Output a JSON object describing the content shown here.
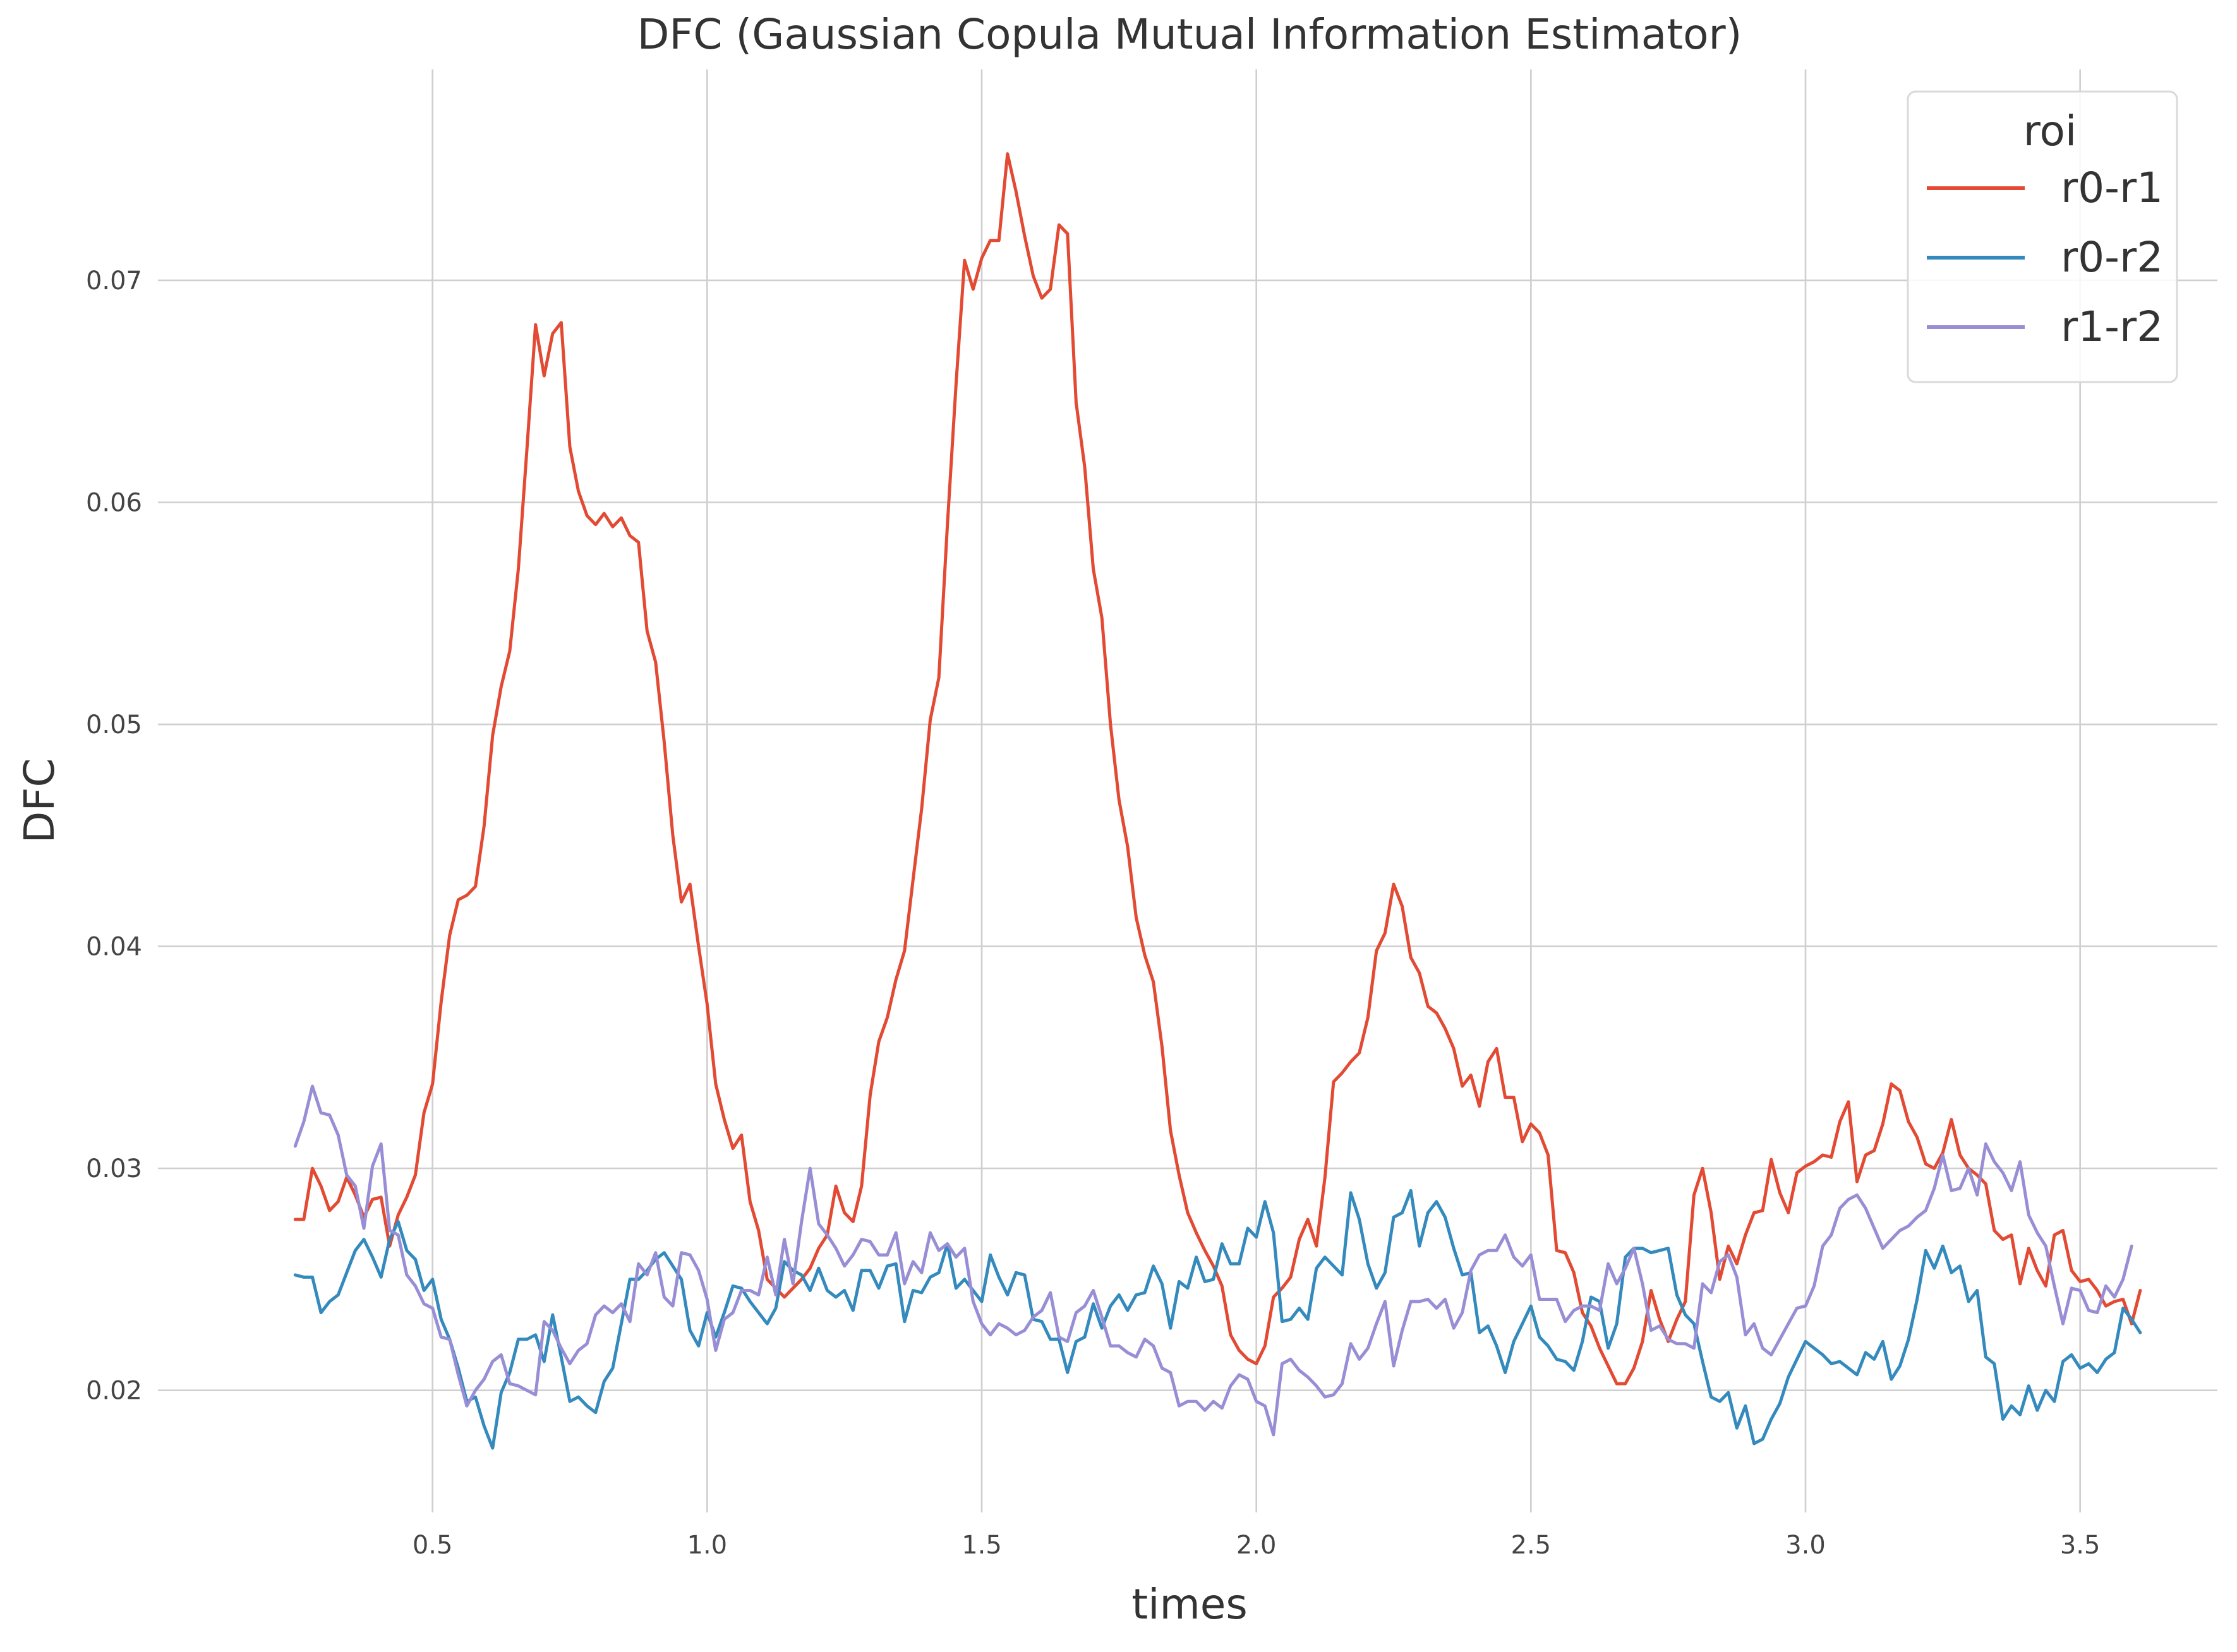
{
  "chart_data": {
    "type": "line",
    "title": "DFC (Gaussian Copula Mutual Information Estimator)",
    "xlabel": "times",
    "ylabel": "DFC",
    "xlim": [
      0.0,
      3.75
    ],
    "ylim": [
      0.0145,
      0.0795
    ],
    "xticks": [
      "0.5",
      "1.0",
      "1.5",
      "2.0",
      "2.5",
      "3.0",
      "3.5"
    ],
    "yticks": [
      "0.02",
      "0.03",
      "0.04",
      "0.05",
      "0.06",
      "0.07"
    ],
    "grid": true,
    "legend": {
      "title": "roi",
      "placement": "top-right"
    },
    "x": {
      "start": 0.25,
      "end": 3.625,
      "step": 0.015625,
      "unit": "times"
    },
    "series": [
      {
        "name": "r0-r1",
        "color": "#E24A33",
        "values": [
          0.0277,
          0.0277,
          0.03,
          0.0292,
          0.0281,
          0.0285,
          0.0296,
          0.0288,
          0.0278,
          0.0286,
          0.0287,
          0.0265,
          0.0279,
          0.0287,
          0.0297,
          0.0325,
          0.0338,
          0.0375,
          0.0405,
          0.0421,
          0.0423,
          0.0427,
          0.0454,
          0.0495,
          0.0517,
          0.0533,
          0.057,
          0.0624,
          0.068,
          0.0657,
          0.0676,
          0.0681,
          0.0625,
          0.0605,
          0.0594,
          0.059,
          0.0595,
          0.0589,
          0.0593,
          0.0585,
          0.0582,
          0.0542,
          0.0528,
          0.0492,
          0.045,
          0.042,
          0.0428,
          0.04,
          0.0374,
          0.0338,
          0.0322,
          0.0309,
          0.0315,
          0.0285,
          0.0272,
          0.025,
          0.0246,
          0.0242,
          0.0246,
          0.025,
          0.0255,
          0.0264,
          0.027,
          0.0292,
          0.028,
          0.0276,
          0.0292,
          0.0333,
          0.0357,
          0.0368,
          0.0385,
          0.0398,
          0.043,
          0.0462,
          0.0502,
          0.0521,
          0.059,
          0.0653,
          0.0709,
          0.0696,
          0.071,
          0.0718,
          0.0718,
          0.0757,
          0.074,
          0.072,
          0.0702,
          0.0692,
          0.0696,
          0.0725,
          0.0721,
          0.0645,
          0.0616,
          0.057,
          0.0548,
          0.05,
          0.0466,
          0.0445,
          0.0413,
          0.0396,
          0.0384,
          0.0355,
          0.0317,
          0.0297,
          0.028,
          0.0271,
          0.0263,
          0.0256,
          0.0247,
          0.0225,
          0.0218,
          0.0214,
          0.0212,
          0.022,
          0.0242,
          0.0246,
          0.0251,
          0.0268,
          0.0277,
          0.0265,
          0.0296,
          0.0339,
          0.0343,
          0.0348,
          0.0352,
          0.0368,
          0.0398,
          0.0406,
          0.0428,
          0.0418,
          0.0395,
          0.0388,
          0.0373,
          0.037,
          0.0363,
          0.0354,
          0.0337,
          0.0342,
          0.0328,
          0.0348,
          0.0354,
          0.0332,
          0.0332,
          0.0312,
          0.032,
          0.0316,
          0.0306,
          0.0263,
          0.0262,
          0.0253,
          0.0235,
          0.0229,
          0.0219,
          0.0211,
          0.0203,
          0.0203,
          0.021,
          0.0222,
          0.0245,
          0.0232,
          0.0222,
          0.0232,
          0.024,
          0.0288,
          0.03,
          0.028,
          0.025,
          0.0265,
          0.0257,
          0.027,
          0.028,
          0.0281,
          0.0304,
          0.0289,
          0.028,
          0.0298,
          0.0301,
          0.0303,
          0.0306,
          0.0305,
          0.0321,
          0.033,
          0.0294,
          0.0306,
          0.0308,
          0.032,
          0.0338,
          0.0335,
          0.0321,
          0.0314,
          0.0302,
          0.03,
          0.0307,
          0.0322,
          0.0306,
          0.03,
          0.0297,
          0.0293,
          0.0272,
          0.0268,
          0.027,
          0.0248,
          0.0264,
          0.0254,
          0.0247,
          0.027,
          0.0272,
          0.0254,
          0.0249,
          0.025,
          0.0245,
          0.0238,
          0.024,
          0.0241,
          0.023,
          0.0245
        ]
      },
      {
        "name": "r0-r2",
        "color": "#348ABD",
        "values": [
          0.0252,
          0.0251,
          0.0251,
          0.0235,
          0.024,
          0.0243,
          0.0253,
          0.0263,
          0.0268,
          0.026,
          0.0251,
          0.0268,
          0.0276,
          0.0263,
          0.0259,
          0.0245,
          0.025,
          0.0232,
          0.0223,
          0.021,
          0.0195,
          0.0197,
          0.0184,
          0.0174,
          0.0199,
          0.0208,
          0.0223,
          0.0223,
          0.0225,
          0.0213,
          0.0234,
          0.0215,
          0.0195,
          0.0197,
          0.0193,
          0.019,
          0.0204,
          0.021,
          0.023,
          0.025,
          0.025,
          0.0254,
          0.0259,
          0.0262,
          0.0256,
          0.025,
          0.0227,
          0.022,
          0.0235,
          0.0224,
          0.0235,
          0.0247,
          0.0246,
          0.024,
          0.0235,
          0.023,
          0.0237,
          0.0258,
          0.0254,
          0.0252,
          0.0245,
          0.0255,
          0.0245,
          0.0242,
          0.0245,
          0.0236,
          0.0254,
          0.0254,
          0.0246,
          0.0256,
          0.0257,
          0.0231,
          0.0245,
          0.0244,
          0.0251,
          0.0253,
          0.0266,
          0.0246,
          0.025,
          0.0245,
          0.024,
          0.0261,
          0.0251,
          0.0243,
          0.0253,
          0.0252,
          0.0232,
          0.0231,
          0.0223,
          0.0223,
          0.0208,
          0.0222,
          0.0224,
          0.0239,
          0.0228,
          0.0238,
          0.0243,
          0.0236,
          0.0243,
          0.0244,
          0.0256,
          0.0248,
          0.0228,
          0.0249,
          0.0246,
          0.026,
          0.0249,
          0.025,
          0.0266,
          0.0257,
          0.0257,
          0.0273,
          0.0269,
          0.0285,
          0.0271,
          0.0231,
          0.0232,
          0.0237,
          0.0232,
          0.0255,
          0.026,
          0.0256,
          0.0252,
          0.0289,
          0.0277,
          0.0257,
          0.0246,
          0.0253,
          0.0278,
          0.028,
          0.029,
          0.0265,
          0.028,
          0.0285,
          0.0278,
          0.0264,
          0.0252,
          0.0253,
          0.0226,
          0.0229,
          0.022,
          0.0208,
          0.0222,
          0.023,
          0.0238,
          0.0224,
          0.022,
          0.0214,
          0.0213,
          0.0209,
          0.0222,
          0.0242,
          0.024,
          0.0219,
          0.023,
          0.026,
          0.0264,
          0.0264,
          0.0262,
          0.0263,
          0.0264,
          0.0243,
          0.0234,
          0.023,
          0.0213,
          0.0197,
          0.0195,
          0.0199,
          0.0183,
          0.0193,
          0.0176,
          0.0178,
          0.0187,
          0.0194,
          0.0206,
          0.0214,
          0.0222,
          0.0219,
          0.0216,
          0.0212,
          0.0213,
          0.021,
          0.0207,
          0.0217,
          0.0214,
          0.0222,
          0.0205,
          0.0211,
          0.0223,
          0.0241,
          0.0263,
          0.0255,
          0.0265,
          0.0253,
          0.0256,
          0.024,
          0.0245,
          0.0215,
          0.0212,
          0.0187,
          0.0193,
          0.0189,
          0.0202,
          0.0191,
          0.02,
          0.0195,
          0.0213,
          0.0216,
          0.021,
          0.0212,
          0.0208,
          0.0214,
          0.0217,
          0.0237,
          0.0232,
          0.0226
        ]
      },
      {
        "name": "r1-r2",
        "color": "#988ED5",
        "values": [
          0.031,
          0.0321,
          0.0337,
          0.0325,
          0.0324,
          0.0315,
          0.0297,
          0.0292,
          0.0273,
          0.0301,
          0.0311,
          0.0272,
          0.027,
          0.0252,
          0.0247,
          0.0239,
          0.0237,
          0.0224,
          0.0223,
          0.0207,
          0.0193,
          0.02,
          0.0205,
          0.0213,
          0.0216,
          0.0203,
          0.0202,
          0.02,
          0.0198,
          0.0231,
          0.0227,
          0.0219,
          0.0212,
          0.0218,
          0.0221,
          0.0234,
          0.0238,
          0.0235,
          0.0239,
          0.0231,
          0.0257,
          0.0252,
          0.0262,
          0.0242,
          0.0238,
          0.0262,
          0.0261,
          0.0254,
          0.0241,
          0.0218,
          0.0232,
          0.0235,
          0.0245,
          0.0245,
          0.0243,
          0.026,
          0.0243,
          0.0268,
          0.0248,
          0.0276,
          0.03,
          0.0275,
          0.027,
          0.0264,
          0.0256,
          0.0261,
          0.0268,
          0.0267,
          0.0261,
          0.0261,
          0.0271,
          0.0248,
          0.0258,
          0.0253,
          0.0271,
          0.0263,
          0.0266,
          0.026,
          0.0264,
          0.024,
          0.023,
          0.0225,
          0.023,
          0.0228,
          0.0225,
          0.0227,
          0.0233,
          0.0236,
          0.0244,
          0.0224,
          0.0222,
          0.0235,
          0.0238,
          0.0245,
          0.0233,
          0.022,
          0.022,
          0.0217,
          0.0215,
          0.0223,
          0.022,
          0.021,
          0.0208,
          0.0193,
          0.0195,
          0.0195,
          0.0191,
          0.0195,
          0.0192,
          0.0202,
          0.0207,
          0.0205,
          0.0195,
          0.0193,
          0.018,
          0.0212,
          0.0214,
          0.0209,
          0.0206,
          0.0202,
          0.0197,
          0.0198,
          0.0203,
          0.0221,
          0.0214,
          0.0219,
          0.023,
          0.024,
          0.0211,
          0.0227,
          0.024,
          0.024,
          0.0241,
          0.0237,
          0.0241,
          0.0228,
          0.0235,
          0.0254,
          0.0261,
          0.0263,
          0.0263,
          0.027,
          0.026,
          0.0256,
          0.0261,
          0.0241,
          0.0241,
          0.0241,
          0.0231,
          0.0236,
          0.0238,
          0.0238,
          0.0236,
          0.0257,
          0.0248,
          0.0255,
          0.0264,
          0.0248,
          0.0227,
          0.0229,
          0.0223,
          0.0221,
          0.0221,
          0.0219,
          0.0248,
          0.0244,
          0.0258,
          0.0261,
          0.0251,
          0.0225,
          0.023,
          0.0219,
          0.0216,
          0.0223,
          0.023,
          0.0237,
          0.0238,
          0.0247,
          0.0265,
          0.027,
          0.0282,
          0.0286,
          0.0288,
          0.0282,
          0.0273,
          0.0264,
          0.0268,
          0.0272,
          0.0274,
          0.0278,
          0.0281,
          0.0291,
          0.0306,
          0.029,
          0.0291,
          0.03,
          0.0288,
          0.0311,
          0.0303,
          0.0298,
          0.029,
          0.0303,
          0.0279,
          0.0271,
          0.0265,
          0.0247,
          0.023,
          0.0246,
          0.0245,
          0.0236,
          0.0235,
          0.0247,
          0.0242,
          0.025,
          0.0265
        ]
      }
    ]
  }
}
